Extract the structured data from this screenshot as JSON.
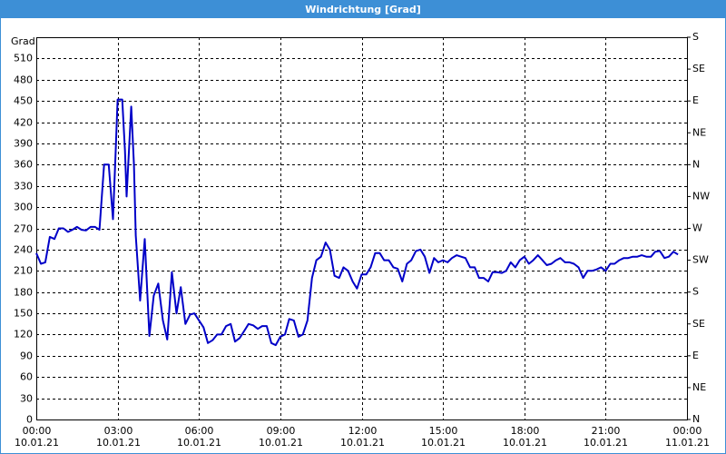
{
  "chart_data": {
    "type": "line",
    "title": "Windrichtung [Grad]",
    "y_label": "Grad",
    "x": [
      0,
      0.17,
      0.33,
      0.5,
      0.67,
      0.83,
      1,
      1.17,
      1.33,
      1.5,
      1.67,
      1.83,
      2,
      2.17,
      2.33,
      2.5,
      2.67,
      2.83,
      2.93,
      3,
      3.17,
      3.27,
      3.33,
      3.5,
      3.6,
      3.67,
      3.83,
      4,
      4.17,
      4.33,
      4.5,
      4.67,
      4.83,
      5,
      5.17,
      5.33,
      5.5,
      5.67,
      5.83,
      6,
      6.17,
      6.33,
      6.5,
      6.67,
      6.83,
      7,
      7.17,
      7.33,
      7.5,
      7.67,
      7.83,
      8,
      8.17,
      8.33,
      8.5,
      8.67,
      8.83,
      9,
      9.17,
      9.33,
      9.5,
      9.67,
      9.83,
      10,
      10.17,
      10.33,
      10.5,
      10.67,
      10.83,
      11,
      11.17,
      11.33,
      11.5,
      11.67,
      11.83,
      12,
      12.17,
      12.33,
      12.5,
      12.67,
      12.83,
      13,
      13.17,
      13.33,
      13.5,
      13.67,
      13.83,
      14,
      14.17,
      14.33,
      14.5,
      14.67,
      14.83,
      15,
      15.17,
      15.33,
      15.5,
      15.67,
      15.83,
      16,
      16.17,
      16.33,
      16.5,
      16.67,
      16.83,
      17,
      17.17,
      17.33,
      17.5,
      17.67,
      17.83,
      18,
      18.17,
      18.33,
      18.5,
      18.67,
      18.83,
      19,
      19.17,
      19.33,
      19.5,
      19.67,
      19.83,
      20,
      20.17,
      20.33,
      20.5,
      20.67,
      20.83,
      21,
      21.17,
      21.33,
      21.5,
      21.67,
      21.83,
      22,
      22.17,
      22.33,
      22.5,
      22.67,
      22.83,
      23,
      23.17,
      23.33,
      23.5,
      23.67
    ],
    "series": [
      {
        "name": "Windrichtung",
        "color": "#0000c8",
        "values": [
          235,
          220,
          222,
          258,
          255,
          270,
          270,
          265,
          268,
          272,
          268,
          267,
          272,
          272,
          268,
          360,
          360,
          283,
          380,
          452,
          452,
          380,
          315,
          442,
          360,
          260,
          168,
          255,
          118,
          175,
          192,
          140,
          113,
          208,
          150,
          187,
          135,
          148,
          150,
          140,
          130,
          108,
          112,
          120,
          120,
          132,
          135,
          110,
          115,
          125,
          135,
          133,
          128,
          132,
          132,
          108,
          105,
          117,
          120,
          142,
          140,
          117,
          120,
          140,
          200,
          225,
          230,
          250,
          240,
          203,
          200,
          215,
          210,
          195,
          185,
          205,
          205,
          215,
          235,
          235,
          225,
          225,
          215,
          213,
          195,
          220,
          225,
          238,
          240,
          230,
          207,
          228,
          222,
          225,
          222,
          228,
          232,
          230,
          228,
          215,
          215,
          200,
          200,
          195,
          208,
          208,
          207,
          210,
          222,
          215,
          225,
          230,
          220,
          225,
          232,
          225,
          218,
          220,
          225,
          228,
          222,
          222,
          220,
          215,
          200,
          210,
          210,
          212,
          215,
          210,
          220,
          220,
          225,
          228,
          228,
          230,
          230,
          232,
          230,
          230,
          237,
          238,
          228,
          230,
          237,
          233
        ]
      }
    ],
    "xlim": [
      0,
      24
    ],
    "xticks": [
      {
        "value": 0,
        "label": "00:00\n10.01.21"
      },
      {
        "value": 3,
        "label": "03:00\n10.01.21"
      },
      {
        "value": 6,
        "label": "06:00\n10.01.21"
      },
      {
        "value": 9,
        "label": "09:00\n10.01.21"
      },
      {
        "value": 12,
        "label": "12:00\n10.01.21"
      },
      {
        "value": 15,
        "label": "15:00\n10.01.21"
      },
      {
        "value": 18,
        "label": "18:00\n10.01.21"
      },
      {
        "value": 21,
        "label": "21:00\n10.01.21"
      },
      {
        "value": 24,
        "label": "00:00\n11.01.21"
      }
    ],
    "ylim": [
      0,
      540
    ],
    "yticks": [
      0,
      30,
      60,
      90,
      120,
      150,
      180,
      210,
      240,
      270,
      300,
      330,
      360,
      390,
      420,
      450,
      480,
      510
    ],
    "y2lim": [
      0,
      540
    ],
    "y2ticks": [
      {
        "value": 0,
        "label": "N"
      },
      {
        "value": 45,
        "label": "NE"
      },
      {
        "value": 90,
        "label": "E"
      },
      {
        "value": 135,
        "label": "SE"
      },
      {
        "value": 180,
        "label": "S"
      },
      {
        "value": 225,
        "label": "SW"
      },
      {
        "value": 270,
        "label": "W"
      },
      {
        "value": 315,
        "label": "NW"
      },
      {
        "value": 360,
        "label": "N"
      },
      {
        "value": 405,
        "label": "NE"
      },
      {
        "value": 450,
        "label": "E"
      },
      {
        "value": 495,
        "label": "SE"
      },
      {
        "value": 540,
        "label": "S"
      }
    ],
    "grid": true
  }
}
